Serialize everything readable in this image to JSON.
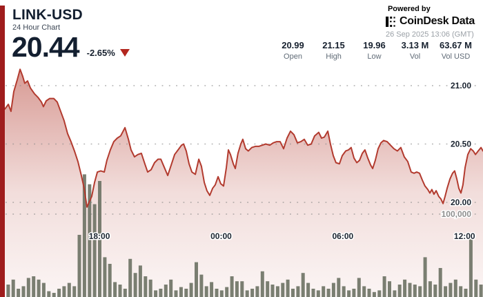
{
  "header": {
    "symbol": "LINK-USD",
    "subtitle": "24 Hour Chart",
    "price": "20.44",
    "change": "-2.65%",
    "change_direction": "down",
    "powered_by": "Powered by",
    "brand": "CoinDesk Data",
    "timestamp": "26 Sep 2025 13:06 (GMT)"
  },
  "stats": [
    {
      "value": "20.99",
      "label": "Open"
    },
    {
      "value": "21.15",
      "label": "High"
    },
    {
      "value": "19.96",
      "label": "Low"
    },
    {
      "value": "3.13 M",
      "label": "Vol"
    },
    {
      "value": "63.67 M",
      "label": "Vol USD"
    }
  ],
  "colors": {
    "accent_bar": "#9f1d1d",
    "price_line": "#b23a2e",
    "change_triangle": "#b3261e",
    "volume_bar": "#6f7466",
    "grid_dots": "#8c8c8c",
    "axis_label": "#1b2430",
    "volume_axis_label": "#8e8e8e",
    "label_gray": "#5f6a76",
    "timestamp_gray": "#9aa0a6"
  },
  "chart_data": {
    "type": "area",
    "title": "LINK-USD 24 Hour Chart",
    "time_span_hours": 24,
    "start_time": "13:06 (GMT) previous day",
    "x_axis": {
      "tick_labels": [
        "18:00",
        "00:00",
        "06:00",
        "12:00"
      ],
      "tick_hours_from_start": [
        4.9,
        10.9,
        16.9,
        22.9
      ]
    },
    "price_axis": {
      "tick_values": [
        21.0,
        20.5,
        20.0
      ],
      "tick_labels": [
        "21.00",
        "20.50",
        "20.00"
      ],
      "side": "right"
    },
    "volume_axis": {
      "tick_values_thousands": [
        100
      ],
      "tick_labels": [
        "100,000"
      ]
    },
    "grid": "dotted horizontal",
    "price_series": {
      "name": "LINK-USD price",
      "unit": "USD",
      "open": 20.99,
      "high": 21.15,
      "low": 19.96,
      "last": 20.44,
      "points": [
        [
          0.24,
          20.8
        ],
        [
          0.41,
          20.84
        ],
        [
          0.54,
          20.78
        ],
        [
          0.68,
          20.95
        ],
        [
          0.85,
          21.05
        ],
        [
          0.99,
          21.14
        ],
        [
          1.12,
          21.08
        ],
        [
          1.22,
          21.02
        ],
        [
          1.36,
          21.04
        ],
        [
          1.5,
          20.98
        ],
        [
          1.7,
          20.93
        ],
        [
          1.87,
          20.9
        ],
        [
          2.04,
          20.86
        ],
        [
          2.14,
          20.82
        ],
        [
          2.28,
          20.87
        ],
        [
          2.45,
          20.89
        ],
        [
          2.65,
          20.89
        ],
        [
          2.82,
          20.86
        ],
        [
          2.99,
          20.78
        ],
        [
          3.16,
          20.7
        ],
        [
          3.33,
          20.59
        ],
        [
          3.5,
          20.52
        ],
        [
          3.67,
          20.44
        ],
        [
          3.84,
          20.35
        ],
        [
          4.01,
          20.23
        ],
        [
          4.15,
          20.12
        ],
        [
          4.29,
          19.96
        ],
        [
          4.39,
          20.0
        ],
        [
          4.52,
          20.05
        ],
        [
          4.66,
          20.17
        ],
        [
          4.8,
          20.26
        ],
        [
          4.97,
          20.27
        ],
        [
          5.14,
          20.26
        ],
        [
          5.27,
          20.36
        ],
        [
          5.44,
          20.45
        ],
        [
          5.61,
          20.52
        ],
        [
          5.78,
          20.55
        ],
        [
          5.95,
          20.57
        ],
        [
          6.16,
          20.64
        ],
        [
          6.33,
          20.54
        ],
        [
          6.46,
          20.45
        ],
        [
          6.63,
          20.39
        ],
        [
          6.8,
          20.41
        ],
        [
          6.97,
          20.42
        ],
        [
          7.14,
          20.33
        ],
        [
          7.28,
          20.26
        ],
        [
          7.45,
          20.28
        ],
        [
          7.62,
          20.34
        ],
        [
          7.79,
          20.37
        ],
        [
          7.93,
          20.37
        ],
        [
          8.1,
          20.3
        ],
        [
          8.27,
          20.23
        ],
        [
          8.44,
          20.32
        ],
        [
          8.61,
          20.41
        ],
        [
          8.78,
          20.45
        ],
        [
          8.95,
          20.49
        ],
        [
          9.05,
          20.5
        ],
        [
          9.18,
          20.44
        ],
        [
          9.32,
          20.33
        ],
        [
          9.46,
          20.26
        ],
        [
          9.63,
          20.24
        ],
        [
          9.8,
          20.37
        ],
        [
          9.93,
          20.31
        ],
        [
          10.07,
          20.17
        ],
        [
          10.2,
          20.1
        ],
        [
          10.34,
          20.06
        ],
        [
          10.48,
          20.12
        ],
        [
          10.61,
          20.15
        ],
        [
          10.75,
          20.22
        ],
        [
          10.88,
          20.16
        ],
        [
          11.02,
          20.14
        ],
        [
          11.16,
          20.3
        ],
        [
          11.26,
          20.45
        ],
        [
          11.36,
          20.41
        ],
        [
          11.5,
          20.33
        ],
        [
          11.6,
          20.29
        ],
        [
          11.73,
          20.42
        ],
        [
          11.87,
          20.5
        ],
        [
          11.97,
          20.54
        ],
        [
          12.11,
          20.46
        ],
        [
          12.24,
          20.44
        ],
        [
          12.41,
          20.47
        ],
        [
          12.59,
          20.48
        ],
        [
          12.76,
          20.48
        ],
        [
          12.93,
          20.49
        ],
        [
          13.1,
          20.5
        ],
        [
          13.3,
          20.49
        ],
        [
          13.47,
          20.51
        ],
        [
          13.64,
          20.52
        ],
        [
          13.81,
          20.52
        ],
        [
          13.98,
          20.46
        ],
        [
          14.15,
          20.55
        ],
        [
          14.32,
          20.61
        ],
        [
          14.49,
          20.58
        ],
        [
          14.66,
          20.51
        ],
        [
          14.83,
          20.52
        ],
        [
          15.0,
          20.54
        ],
        [
          15.17,
          20.49
        ],
        [
          15.34,
          20.5
        ],
        [
          15.51,
          20.57
        ],
        [
          15.71,
          20.6
        ],
        [
          15.85,
          20.55
        ],
        [
          15.99,
          20.56
        ],
        [
          16.16,
          20.61
        ],
        [
          16.29,
          20.5
        ],
        [
          16.43,
          20.4
        ],
        [
          16.56,
          20.34
        ],
        [
          16.73,
          20.33
        ],
        [
          16.87,
          20.4
        ],
        [
          17.04,
          20.44
        ],
        [
          17.18,
          20.45
        ],
        [
          17.31,
          20.47
        ],
        [
          17.45,
          20.38
        ],
        [
          17.59,
          20.34
        ],
        [
          17.72,
          20.36
        ],
        [
          17.86,
          20.42
        ],
        [
          17.99,
          20.45
        ],
        [
          18.13,
          20.38
        ],
        [
          18.27,
          20.32
        ],
        [
          18.37,
          20.29
        ],
        [
          18.5,
          20.36
        ],
        [
          18.64,
          20.46
        ],
        [
          18.78,
          20.51
        ],
        [
          18.91,
          20.53
        ],
        [
          19.08,
          20.52
        ],
        [
          19.25,
          20.49
        ],
        [
          19.42,
          20.46
        ],
        [
          19.59,
          20.44
        ],
        [
          19.76,
          20.47
        ],
        [
          19.93,
          20.39
        ],
        [
          20.1,
          20.35
        ],
        [
          20.27,
          20.26
        ],
        [
          20.41,
          20.25
        ],
        [
          20.54,
          20.26
        ],
        [
          20.68,
          20.25
        ],
        [
          20.82,
          20.19
        ],
        [
          20.95,
          20.14
        ],
        [
          21.09,
          20.11
        ],
        [
          21.19,
          20.08
        ],
        [
          21.29,
          20.11
        ],
        [
          21.39,
          20.07
        ],
        [
          21.5,
          20.1
        ],
        [
          21.63,
          20.05
        ],
        [
          21.73,
          20.03
        ],
        [
          21.84,
          19.99
        ],
        [
          21.94,
          20.05
        ],
        [
          22.04,
          20.12
        ],
        [
          22.18,
          20.2
        ],
        [
          22.31,
          20.25
        ],
        [
          22.41,
          20.27
        ],
        [
          22.52,
          20.2
        ],
        [
          22.62,
          20.12
        ],
        [
          22.72,
          20.08
        ],
        [
          22.82,
          20.15
        ],
        [
          22.93,
          20.3
        ],
        [
          23.06,
          20.41
        ],
        [
          23.2,
          20.46
        ],
        [
          23.33,
          20.44
        ],
        [
          23.44,
          20.41
        ],
        [
          23.57,
          20.44
        ],
        [
          23.71,
          20.47
        ],
        [
          23.81,
          20.44
        ]
      ]
    },
    "volume_series": {
      "name": "Volume",
      "unit": "thousands",
      "total_24h": "3.13 M",
      "bar_values": [
        29,
        15,
        21,
        10,
        13,
        23,
        25,
        21,
        17,
        7,
        5,
        10,
        13,
        17,
        13,
        75,
        148,
        136,
        112,
        140,
        48,
        40,
        18,
        15,
        10,
        46,
        29,
        38,
        25,
        21,
        8,
        10,
        15,
        21,
        8,
        12,
        10,
        17,
        42,
        27,
        13,
        18,
        10,
        8,
        12,
        25,
        19,
        19,
        8,
        10,
        13,
        31,
        19,
        15,
        13,
        17,
        21,
        10,
        13,
        29,
        17,
        10,
        8,
        13,
        10,
        17,
        23,
        13,
        8,
        10,
        23,
        13,
        10,
        6,
        8,
        25,
        19,
        8,
        15,
        21,
        17,
        15,
        13,
        48,
        19,
        15,
        35,
        13,
        17,
        21,
        13,
        10,
        75,
        21,
        15
      ]
    },
    "legend": "none"
  }
}
